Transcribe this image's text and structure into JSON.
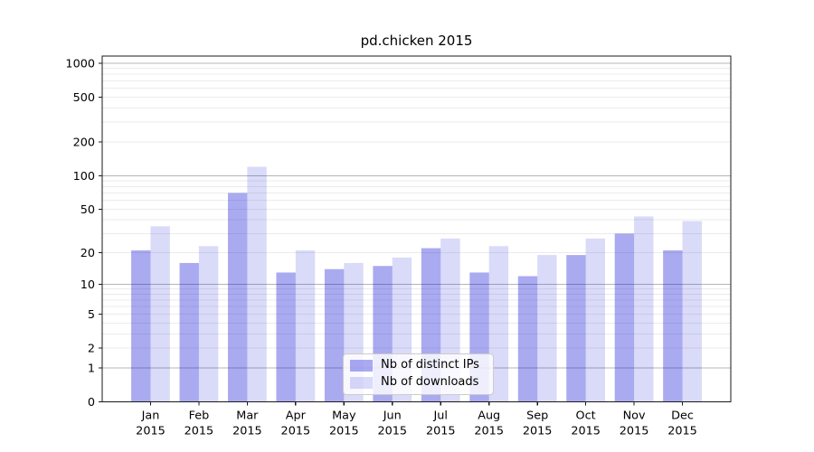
{
  "chart_data": {
    "type": "bar",
    "title": "pd.chicken 2015",
    "categories": [
      "Jan",
      "Feb",
      "Mar",
      "Apr",
      "May",
      "Jun",
      "Jul",
      "Aug",
      "Sep",
      "Oct",
      "Nov",
      "Dec"
    ],
    "category_year": "2015",
    "series": [
      {
        "name": "Nb of distinct IPs",
        "values": [
          21,
          16,
          70,
          13,
          14,
          15,
          22,
          13,
          12,
          19,
          30,
          21
        ],
        "color": "rgba(10,10,215,0.345)"
      },
      {
        "name": "Nb of downloads",
        "values": [
          35,
          23,
          120,
          21,
          16,
          18,
          27,
          23,
          19,
          27,
          43,
          39
        ],
        "color": "rgba(10,10,215,0.15)"
      }
    ],
    "xlabel": "",
    "ylabel": "",
    "y_scale": "log10(1+v)",
    "y_ticks": [
      0,
      1,
      2,
      5,
      10,
      20,
      50,
      100,
      200,
      500,
      1000
    ],
    "ylim": [
      0,
      1160
    ],
    "grid": {
      "major_color": "#b5b5b5",
      "minor_color": "#ebebeb",
      "major_at": [
        1,
        10,
        100,
        1000
      ]
    },
    "legend": {
      "position": "lower center"
    },
    "axis_color": "#1a1a1a",
    "tick_label_color": "#000000"
  }
}
